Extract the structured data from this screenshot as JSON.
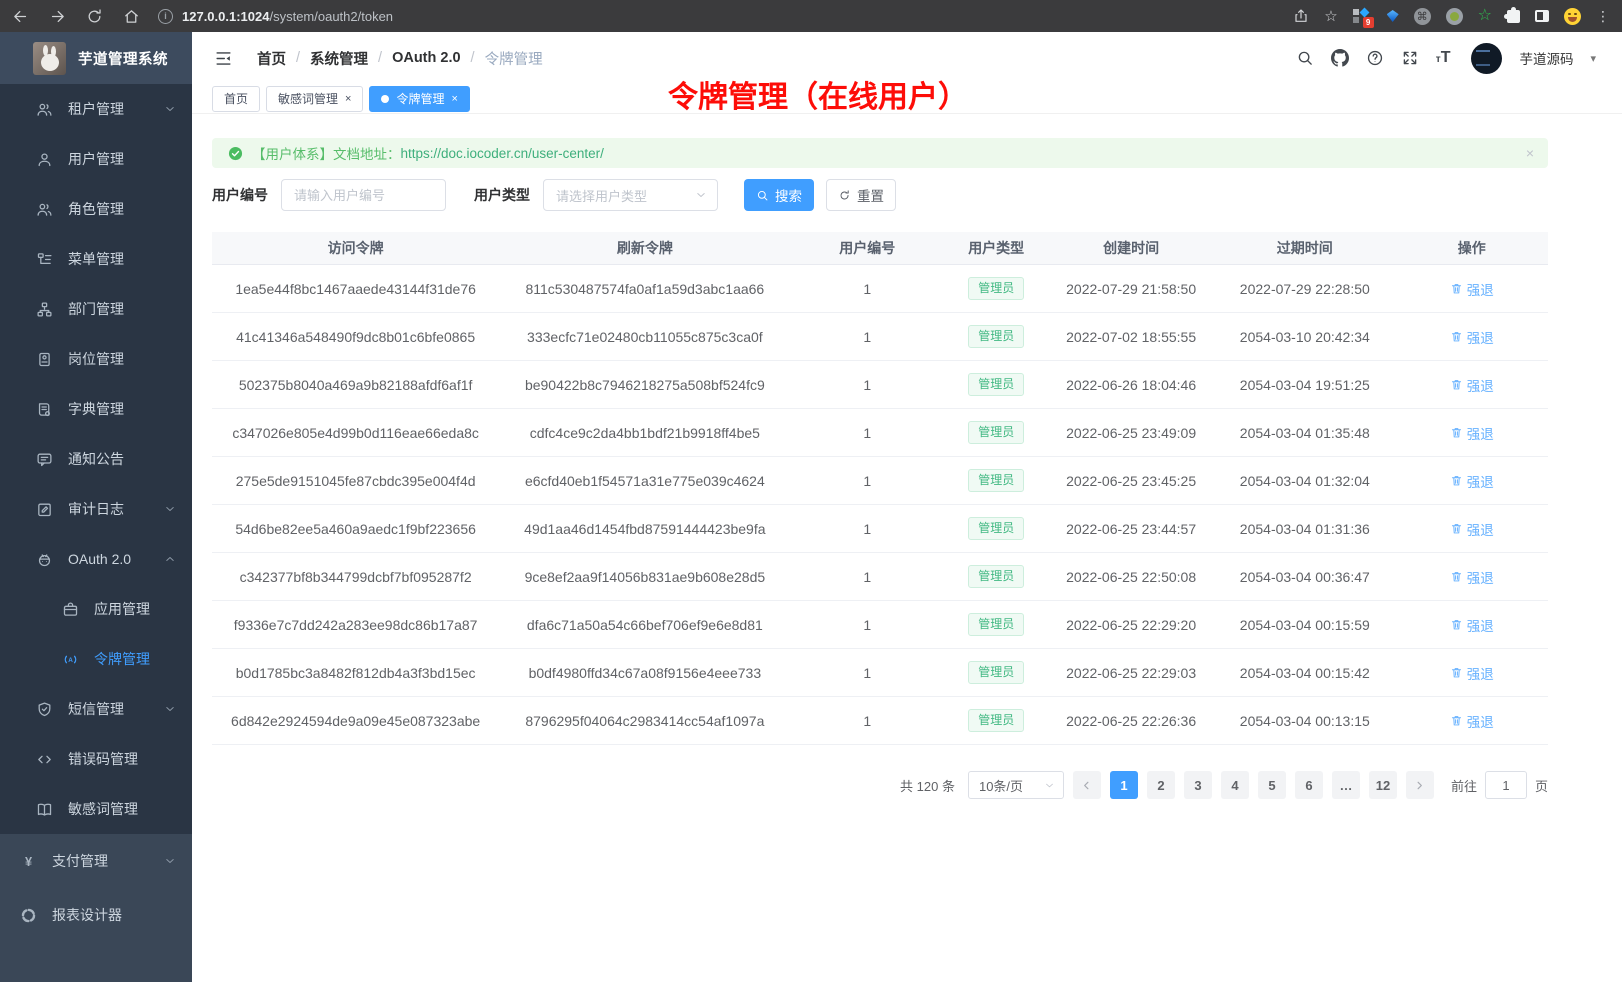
{
  "colors": {
    "primary": "#409eff",
    "success": "#57bd6a",
    "tag_green": "#42b983",
    "annotation_red": "#fd0d08",
    "sidebar_bg": "#2a3544"
  },
  "browser": {
    "url_host": "127.0.0.1:1024",
    "url_path": "/system/oauth2/token",
    "extension_badge": "9"
  },
  "sidebar": {
    "title": "芋道管理系统",
    "items": [
      {
        "label": "租户管理",
        "icon": "users-icon",
        "chevron": "down"
      },
      {
        "label": "用户管理",
        "icon": "user-icon"
      },
      {
        "label": "角色管理",
        "icon": "users-icon"
      },
      {
        "label": "菜单管理",
        "icon": "menu-tree-icon"
      },
      {
        "label": "部门管理",
        "icon": "org-icon"
      },
      {
        "label": "岗位管理",
        "icon": "badge-icon"
      },
      {
        "label": "字典管理",
        "icon": "dict-icon"
      },
      {
        "label": "通知公告",
        "icon": "message-icon"
      },
      {
        "label": "审计日志",
        "icon": "edit-icon",
        "chevron": "down"
      },
      {
        "label": "OAuth 2.0",
        "icon": "robot-icon",
        "chevron": "up"
      },
      {
        "label": "应用管理",
        "icon": "briefcase-icon",
        "sub": true
      },
      {
        "label": "令牌管理",
        "icon": "token-icon",
        "sub": true,
        "active": true
      },
      {
        "label": "短信管理",
        "icon": "shield-icon",
        "chevron": "down"
      },
      {
        "label": "错误码管理",
        "icon": "code-icon"
      },
      {
        "label": "敏感词管理",
        "icon": "book-icon"
      }
    ],
    "bottom_items": [
      {
        "label": "支付管理",
        "icon": "yen-icon",
        "chevron": "down"
      },
      {
        "label": "报表设计器",
        "icon": "report-icon"
      }
    ]
  },
  "header": {
    "breadcrumb": [
      "首页",
      "系统管理",
      "OAuth 2.0",
      "令牌管理"
    ],
    "username": "芋道源码"
  },
  "tabs": [
    {
      "label": "首页"
    },
    {
      "label": "敏感词管理",
      "closable": true
    },
    {
      "label": "令牌管理",
      "closable": true,
      "active": true
    }
  ],
  "annotation": "令牌管理（在线用户）",
  "alert": {
    "text": "【用户体系】文档地址：",
    "link": "https://doc.iocoder.cn/user-center/"
  },
  "filters": {
    "user_id_label": "用户编号",
    "user_id_placeholder": "请输入用户编号",
    "user_type_label": "用户类型",
    "user_type_placeholder": "请选择用户类型",
    "search_label": "搜索",
    "reset_label": "重置"
  },
  "table": {
    "headers": [
      "访问令牌",
      "刷新令牌",
      "用户编号",
      "用户类型",
      "创建时间",
      "过期时间",
      "操作"
    ],
    "rows": [
      {
        "access": "1ea5e44f8bc1467aaede43144f31de76",
        "refresh": "811c530487574fa0af1a59d3abc1aa66",
        "user_id": "1",
        "user_type": "管理员",
        "created": "2022-07-29 21:58:50",
        "expires": "2022-07-29 22:28:50",
        "action": "强退"
      },
      {
        "access": "41c41346a548490f9dc8b01c6bfe0865",
        "refresh": "333ecfc71e02480cb11055c875c3ca0f",
        "user_id": "1",
        "user_type": "管理员",
        "created": "2022-07-02 18:55:55",
        "expires": "2054-03-10 20:42:34",
        "action": "强退"
      },
      {
        "access": "502375b8040a469a9b82188afdf6af1f",
        "refresh": "be90422b8c7946218275a508bf524fc9",
        "user_id": "1",
        "user_type": "管理员",
        "created": "2022-06-26 18:04:46",
        "expires": "2054-03-04 19:51:25",
        "action": "强退"
      },
      {
        "access": "c347026e805e4d99b0d116eae66eda8c",
        "refresh": "cdfc4ce9c2da4bb1bdf21b9918ff4be5",
        "user_id": "1",
        "user_type": "管理员",
        "created": "2022-06-25 23:49:09",
        "expires": "2054-03-04 01:35:48",
        "action": "强退"
      },
      {
        "access": "275e5de9151045fe87cbdc395e004f4d",
        "refresh": "e6cfd40eb1f54571a31e775e039c4624",
        "user_id": "1",
        "user_type": "管理员",
        "created": "2022-06-25 23:45:25",
        "expires": "2054-03-04 01:32:04",
        "action": "强退"
      },
      {
        "access": "54d6be82ee5a460a9aedc1f9bf223656",
        "refresh": "49d1aa46d1454fbd87591444423be9fa",
        "user_id": "1",
        "user_type": "管理员",
        "created": "2022-06-25 23:44:57",
        "expires": "2054-03-04 01:31:36",
        "action": "强退"
      },
      {
        "access": "c342377bf8b344799dcbf7bf095287f2",
        "refresh": "9ce8ef2aa9f14056b831ae9b608e28d5",
        "user_id": "1",
        "user_type": "管理员",
        "created": "2022-06-25 22:50:08",
        "expires": "2054-03-04 00:36:47",
        "action": "强退"
      },
      {
        "access": "f9336e7c7dd242a283ee98dc86b17a87",
        "refresh": "dfa6c71a50a54c66bef706ef9e6e8d81",
        "user_id": "1",
        "user_type": "管理员",
        "created": "2022-06-25 22:29:20",
        "expires": "2054-03-04 00:15:59",
        "action": "强退"
      },
      {
        "access": "b0d1785bc3a8482f812db4a3f3bd15ec",
        "refresh": "b0df4980ffd34c67a08f9156e4eee733",
        "user_id": "1",
        "user_type": "管理员",
        "created": "2022-06-25 22:29:03",
        "expires": "2054-03-04 00:15:42",
        "action": "强退"
      },
      {
        "access": "6d842e2924594de9a09e45e087323abe",
        "refresh": "8796295f04064c2983414cc54af1097a",
        "user_id": "1",
        "user_type": "管理员",
        "created": "2022-06-25 22:26:36",
        "expires": "2054-03-04 00:13:15",
        "action": "强退"
      }
    ]
  },
  "pagination": {
    "total": "共 120 条",
    "page_size": "10条/页",
    "pages": [
      {
        "label": "1",
        "active": true
      },
      {
        "label": "2"
      },
      {
        "label": "3"
      },
      {
        "label": "4"
      },
      {
        "label": "5"
      },
      {
        "label": "6"
      },
      {
        "label": "…"
      },
      {
        "label": "12"
      }
    ],
    "goto_label": "前往",
    "goto_value": "1",
    "goto_suffix": "页"
  }
}
